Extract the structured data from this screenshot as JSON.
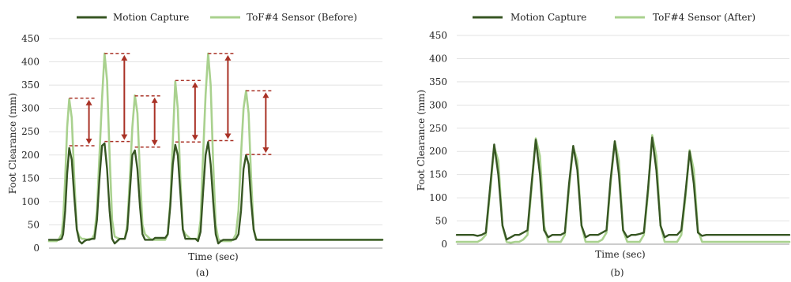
{
  "colors": {
    "motion": "#375623",
    "tof": "#A9D18E",
    "annotation": "#A93226",
    "grid": "#E3E3E3",
    "axis": "#9A9A9A"
  },
  "chart_data": [
    {
      "type": "line",
      "panel_label": "(a)",
      "xlabel": "Time (sec)",
      "ylabel": "Foot Clearance (mm)",
      "ylim": [
        0,
        450
      ],
      "yticks": [
        "0",
        "50",
        "100",
        "150",
        "200",
        "250",
        "300",
        "350",
        "400",
        "450"
      ],
      "grid": true,
      "legend": "top",
      "x": [
        0,
        0.5,
        1,
        1.5,
        2,
        2.5,
        2.8,
        3.2,
        3.6,
        4,
        4.5,
        5,
        5.5,
        6,
        6.5,
        7,
        7.5,
        8,
        8.5,
        9,
        9.5,
        10,
        10.5,
        11,
        11.5,
        12,
        12.5,
        13,
        13.5,
        14,
        14.5,
        15,
        15.5,
        16,
        16.5,
        17,
        17.5,
        18,
        18.5,
        19,
        19.5,
        20,
        20.5,
        21,
        21.5,
        22,
        22.5,
        23,
        23.5,
        24,
        24.5,
        25,
        25.5,
        26,
        26.5,
        27,
        27.5,
        28,
        28.5,
        29,
        29.5,
        30,
        30.5,
        31,
        31.5,
        32,
        32.5,
        33,
        33.5,
        34,
        34.5,
        35,
        35.5,
        36,
        36.5,
        37,
        37.5,
        38,
        38.5,
        39,
        39.5,
        40,
        40.5,
        41,
        41.5,
        42,
        42.5,
        43,
        43.5,
        44,
        44.5,
        45,
        45.5,
        46,
        46.5,
        47,
        47.5,
        48,
        48.5,
        49,
        49.5,
        50,
        50.5,
        51,
        51.5,
        52,
        52.5,
        53,
        53.5,
        54,
        54.5,
        55,
        55.5,
        56,
        56.5,
        57,
        57.5,
        58,
        58.5,
        59,
        59.5,
        60,
        60.5,
        61,
        61.5,
        62,
        62.5,
        63,
        63.5,
        64,
        64.5,
        65,
        65.5,
        66
      ],
      "series": [
        {
          "name": "Motion Capture",
          "values": [
            18,
            18,
            18,
            18,
            18,
            20,
            30,
            80,
            160,
            215,
            190,
            110,
            40,
            15,
            10,
            15,
            18,
            18,
            20,
            20,
            60,
            150,
            220,
            225,
            170,
            80,
            20,
            10,
            15,
            20,
            20,
            20,
            40,
            120,
            200,
            210,
            170,
            90,
            30,
            18,
            18,
            18,
            18,
            22,
            22,
            22,
            22,
            22,
            30,
            90,
            180,
            222,
            200,
            120,
            40,
            20,
            20,
            20,
            20,
            20,
            15,
            35,
            120,
            200,
            228,
            180,
            100,
            30,
            10,
            15,
            18,
            18,
            18,
            18,
            18,
            20,
            30,
            80,
            170,
            200,
            180,
            100,
            40,
            18,
            18,
            18,
            18,
            18,
            18,
            18,
            18,
            18,
            18,
            18,
            18,
            18,
            18,
            18,
            18,
            18,
            18,
            18,
            18,
            18,
            18,
            18,
            18,
            18,
            18,
            18,
            18,
            18,
            18,
            18,
            18,
            18,
            18,
            18,
            18,
            18,
            18,
            18,
            18,
            18,
            18,
            18,
            18,
            18,
            18,
            18,
            18,
            18,
            18,
            18
          ]
        },
        {
          "name": "ToF#4 Sensor (Before)",
          "values": [
            15,
            15,
            15,
            15,
            20,
            30,
            60,
            150,
            260,
            320,
            280,
            150,
            40,
            25,
            20,
            20,
            18,
            20,
            20,
            30,
            80,
            200,
            320,
            418,
            360,
            200,
            60,
            25,
            22,
            20,
            20,
            20,
            50,
            150,
            260,
            328,
            290,
            160,
            50,
            30,
            25,
            20,
            18,
            18,
            18,
            18,
            18,
            18,
            30,
            100,
            230,
            358,
            300,
            150,
            40,
            30,
            25,
            20,
            20,
            20,
            20,
            60,
            200,
            330,
            418,
            350,
            180,
            50,
            20,
            15,
            15,
            15,
            15,
            15,
            20,
            30,
            80,
            200,
            300,
            338,
            290,
            150,
            40,
            20,
            18,
            18,
            18,
            18,
            18,
            18,
            18,
            18,
            18,
            18,
            18,
            18,
            18,
            18,
            18,
            18,
            18,
            18,
            18,
            18,
            18,
            18,
            18,
            18,
            18,
            18,
            18,
            18,
            18,
            18,
            18,
            18,
            18,
            18,
            18,
            18,
            18,
            18,
            18,
            18,
            18,
            18,
            18,
            18,
            18,
            18,
            18,
            18,
            18,
            18
          ]
        }
      ],
      "annotations": [
        {
          "peak": 322,
          "mocap": 220
        },
        {
          "peak": 418,
          "mocap": 229
        },
        {
          "peak": 327,
          "mocap": 217
        },
        {
          "peak": 360,
          "mocap": 228
        },
        {
          "peak": 418,
          "mocap": 231
        },
        {
          "peak": 338,
          "mocap": 201
        }
      ]
    },
    {
      "type": "line",
      "panel_label": "(b)",
      "xlabel": "Time (sec)",
      "ylabel": "Foot Clearance (mm)",
      "ylim": [
        0,
        450
      ],
      "yticks": [
        "0",
        "50",
        "100",
        "150",
        "200",
        "250",
        "300",
        "350",
        "400",
        "450"
      ],
      "grid": true,
      "legend": "top",
      "x": [
        0,
        1,
        2,
        3,
        4,
        5,
        6,
        7,
        8,
        9,
        10,
        11,
        12,
        13,
        14,
        15,
        16,
        17,
        18,
        19,
        20,
        21,
        22,
        23,
        24,
        25,
        26,
        27,
        28,
        29,
        30,
        31,
        32,
        33,
        34,
        35,
        36,
        37,
        38,
        39,
        40,
        41,
        42,
        43,
        44,
        45,
        46,
        47,
        48,
        49,
        50,
        51,
        52,
        53,
        54,
        55,
        56,
        57,
        58,
        59,
        60,
        61,
        62,
        63,
        64,
        65,
        66,
        67,
        68,
        69,
        70,
        71,
        72,
        73,
        74,
        75,
        76,
        77,
        78,
        79,
        80
      ],
      "series": [
        {
          "name": "Motion Capture",
          "values": [
            20,
            20,
            20,
            20,
            20,
            18,
            20,
            25,
            120,
            215,
            150,
            40,
            10,
            15,
            20,
            20,
            25,
            30,
            130,
            225,
            150,
            30,
            15,
            20,
            20,
            20,
            25,
            130,
            212,
            160,
            40,
            15,
            20,
            20,
            20,
            25,
            30,
            140,
            222,
            150,
            30,
            15,
            20,
            20,
            22,
            25,
            120,
            230,
            160,
            40,
            15,
            20,
            20,
            20,
            30,
            110,
            200,
            130,
            25,
            18,
            20,
            20,
            20,
            20,
            20,
            20,
            20,
            20,
            20,
            20,
            20,
            20,
            20,
            20,
            20,
            20,
            20,
            20,
            20,
            20,
            20
          ]
        },
        {
          "name": "ToF#4 Sensor (After)",
          "values": [
            5,
            5,
            5,
            5,
            5,
            5,
            10,
            20,
            110,
            210,
            180,
            40,
            5,
            3,
            5,
            5,
            10,
            20,
            120,
            228,
            190,
            40,
            5,
            5,
            5,
            5,
            20,
            120,
            210,
            180,
            40,
            5,
            5,
            5,
            5,
            10,
            25,
            130,
            222,
            180,
            30,
            5,
            5,
            5,
            5,
            20,
            110,
            235,
            190,
            40,
            5,
            5,
            5,
            5,
            20,
            100,
            203,
            160,
            30,
            5,
            5,
            5,
            5,
            5,
            5,
            5,
            5,
            5,
            5,
            5,
            5,
            5,
            5,
            5,
            5,
            5,
            5,
            5,
            5,
            5,
            5
          ]
        }
      ]
    }
  ]
}
